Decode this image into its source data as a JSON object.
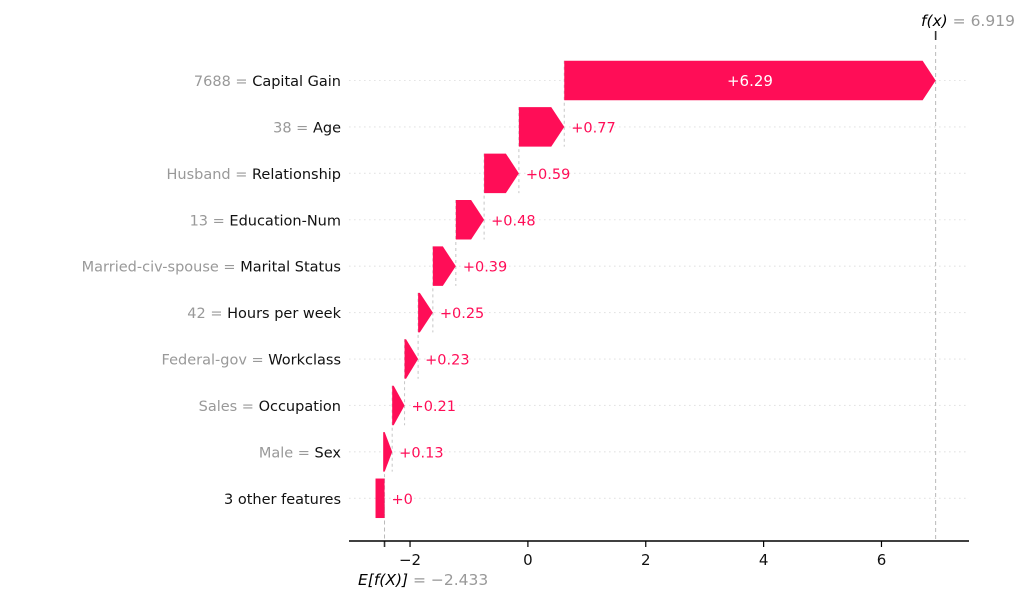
{
  "chart_data": {
    "type": "bar",
    "variant": "shap-waterfall",
    "title": "",
    "xlabel": "",
    "ylabel": "",
    "legend": "none",
    "grid": "horizontal-dotted-row-lines",
    "fx": {
      "label": "f(x)",
      "value": 6.919,
      "display": " = 6.919"
    },
    "base": {
      "label": "E[f(X)]",
      "value": -2.433,
      "display": " = −2.433"
    },
    "label_separator": " = ",
    "rows": [
      {
        "feature_value": "7688",
        "feature": "Capital Gain",
        "contribution": 6.29,
        "label": "+6.29"
      },
      {
        "feature_value": "38",
        "feature": "Age",
        "contribution": 0.77,
        "label": "+0.77"
      },
      {
        "feature_value": "Husband",
        "feature": "Relationship",
        "contribution": 0.59,
        "label": "+0.59"
      },
      {
        "feature_value": "13",
        "feature": "Education-Num",
        "contribution": 0.48,
        "label": "+0.48"
      },
      {
        "feature_value": "Married-civ-spouse",
        "feature": "Marital Status",
        "contribution": 0.39,
        "label": "+0.39"
      },
      {
        "feature_value": "42",
        "feature": "Hours per week",
        "contribution": 0.25,
        "label": "+0.25"
      },
      {
        "feature_value": "Federal-gov",
        "feature": "Workclass",
        "contribution": 0.23,
        "label": "+0.23"
      },
      {
        "feature_value": "Sales",
        "feature": "Occupation",
        "contribution": 0.21,
        "label": "+0.21"
      },
      {
        "feature_value": "Male",
        "feature": "Sex",
        "contribution": 0.13,
        "label": "+0.13"
      },
      {
        "feature_value": "",
        "feature": "3 other features",
        "contribution": 0,
        "label": "+0"
      }
    ],
    "x_axis": {
      "ticks": [
        {
          "value": -2,
          "label": "−2"
        },
        {
          "value": 0,
          "label": "0"
        },
        {
          "value": 2,
          "label": "2"
        },
        {
          "value": 4,
          "label": "4"
        },
        {
          "value": 6,
          "label": "6"
        }
      ],
      "range": [
        -3.05,
        7.5
      ]
    },
    "colors": {
      "positive_bar": "#ff0d57",
      "contribution_text": "#ff0d57",
      "bar_label_inside": "#ffffff",
      "muted_text": "#999999",
      "axis_text": "#111111",
      "reference_dash": "#b9b9b9",
      "connector_dash": "#c6c6c6",
      "row_gridline": "#e4e4e4",
      "axis_line": "#000000",
      "reference_tick": "#333333"
    }
  }
}
